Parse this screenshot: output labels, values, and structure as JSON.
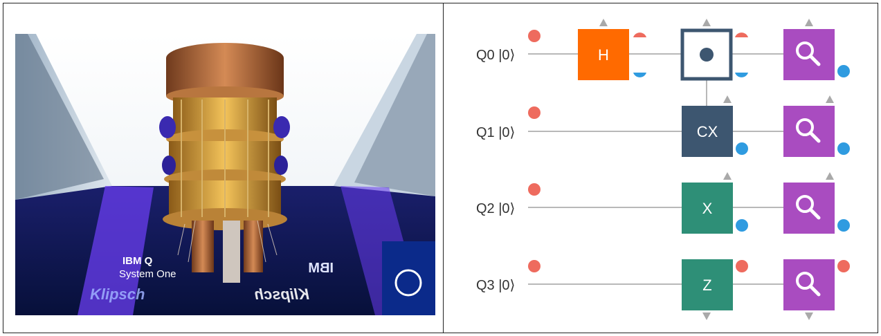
{
  "photo": {
    "caption_line1": "IBM Q",
    "caption_line2": "System One",
    "brand_left": "Klipsch",
    "brand_right": "Klipsch",
    "ibm_logo": "IBM"
  },
  "circuit": {
    "qubits": [
      {
        "label": "Q0 |0⟩"
      },
      {
        "label": "Q1 |0⟩"
      },
      {
        "label": "Q2 |0⟩"
      },
      {
        "label": "Q3 |0⟩"
      }
    ],
    "gates": {
      "h": "H",
      "cx_control": "●",
      "cx_target": "CX",
      "x": "X",
      "z": "Z"
    },
    "colors": {
      "wire": "#b8b8b8",
      "h_gate": "#ff6a00",
      "cx_gate": "#3d5670",
      "x_gate": "#2e8f77",
      "measure_gate": "#a94cc0",
      "dot_red": "#ee6b5e",
      "dot_blue": "#2f9be0",
      "arrow": "#a9a9a9"
    },
    "icons": [
      "magnifier-icon"
    ]
  }
}
